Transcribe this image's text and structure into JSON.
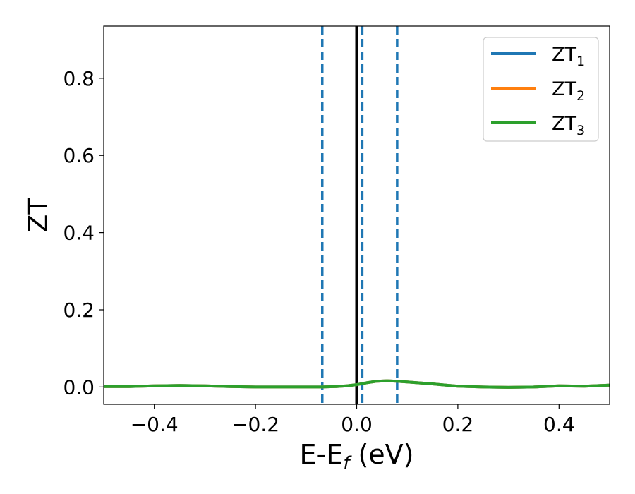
{
  "chart_data": {
    "type": "line",
    "xlabel": "E-E",
    "xlabel_sub": "f",
    "xlabel_unit": " (eV)",
    "ylabel": "ZT",
    "xlim": [
      -0.5,
      0.5
    ],
    "ylim": [
      -0.045,
      0.935
    ],
    "xticks": [
      -0.4,
      -0.2,
      0.0,
      0.2,
      0.4
    ],
    "xtick_labels": [
      "−0.4",
      "−0.2",
      "0.0",
      "0.2",
      "0.4"
    ],
    "yticks": [
      0.0,
      0.2,
      0.4,
      0.6,
      0.8
    ],
    "ytick_labels": [
      "0.0",
      "0.2",
      "0.4",
      "0.6",
      "0.8"
    ],
    "grid": false,
    "legend_position": "top-right",
    "series": [
      {
        "name": "ZT",
        "name_sub": "1",
        "color": "#1f77b4",
        "x": [
          -0.5,
          -0.45,
          -0.4,
          -0.35,
          -0.3,
          -0.25,
          -0.2,
          -0.15,
          -0.1,
          -0.07,
          -0.04,
          -0.02,
          0.0,
          0.02,
          0.04,
          0.06,
          0.08,
          0.1,
          0.15,
          0.2,
          0.25,
          0.3,
          0.35,
          0.4,
          0.45,
          0.5
        ],
        "y": [
          0.001,
          0.001,
          0.003,
          0.004,
          0.003,
          0.001,
          0.0,
          0.0,
          0.0,
          0.0,
          0.001,
          0.003,
          0.006,
          0.011,
          0.015,
          0.016,
          0.015,
          0.013,
          0.008,
          0.002,
          0.0,
          -0.001,
          0.0,
          0.003,
          0.002,
          0.005
        ]
      },
      {
        "name": "ZT",
        "name_sub": "2",
        "color": "#ff7f0e",
        "x": [
          -0.5,
          -0.45,
          -0.4,
          -0.35,
          -0.3,
          -0.25,
          -0.2,
          -0.15,
          -0.1,
          -0.07,
          -0.04,
          -0.02,
          0.0,
          0.02,
          0.04,
          0.06,
          0.08,
          0.1,
          0.15,
          0.2,
          0.25,
          0.3,
          0.35,
          0.4,
          0.45,
          0.5
        ],
        "y": [
          0.001,
          0.001,
          0.003,
          0.004,
          0.003,
          0.001,
          0.0,
          0.0,
          0.0,
          0.0,
          0.001,
          0.003,
          0.006,
          0.011,
          0.015,
          0.016,
          0.015,
          0.013,
          0.008,
          0.002,
          0.0,
          -0.001,
          0.0,
          0.003,
          0.002,
          0.005
        ]
      },
      {
        "name": "ZT",
        "name_sub": "3",
        "color": "#2ca02c",
        "x": [
          -0.5,
          -0.45,
          -0.4,
          -0.35,
          -0.3,
          -0.25,
          -0.2,
          -0.15,
          -0.1,
          -0.07,
          -0.04,
          -0.02,
          0.0,
          0.02,
          0.04,
          0.06,
          0.08,
          0.1,
          0.15,
          0.2,
          0.25,
          0.3,
          0.35,
          0.4,
          0.45,
          0.5
        ],
        "y": [
          0.001,
          0.001,
          0.003,
          0.004,
          0.003,
          0.001,
          0.0,
          0.0,
          0.0,
          0.0,
          0.001,
          0.003,
          0.006,
          0.011,
          0.015,
          0.016,
          0.015,
          0.013,
          0.008,
          0.002,
          0.0,
          -0.001,
          0.0,
          0.003,
          0.002,
          0.005
        ]
      }
    ],
    "vlines": [
      {
        "x": 0.0,
        "style": "solid",
        "color": "#000000"
      },
      {
        "x": -0.068,
        "style": "dashed",
        "color": "#1f77b4"
      },
      {
        "x": 0.011,
        "style": "dashed",
        "color": "#1f77b4"
      },
      {
        "x": 0.08,
        "style": "dashed",
        "color": "#1f77b4"
      }
    ]
  }
}
